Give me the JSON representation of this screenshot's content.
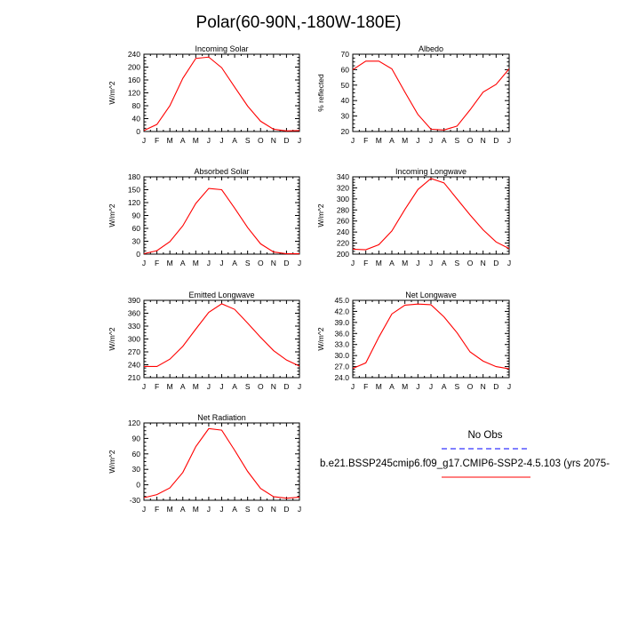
{
  "figure": {
    "title": "Polar(60-90N,-180W-180E)",
    "colors": {
      "model": "#ff0000",
      "obs": "#0000ff",
      "axis": "#000000"
    }
  },
  "legend": {
    "obs_label": "No Obs",
    "model_label": "b.e21.BSSP245cmip6.f09_g17.CMIP6-SSP2-4.5.103 (yrs 2075-"
  },
  "chart_data": [
    {
      "type": "line",
      "title": "Incoming Solar",
      "ylabel": "W/m^2",
      "categories": [
        "J",
        "F",
        "M",
        "A",
        "M",
        "J",
        "J",
        "A",
        "S",
        "O",
        "N",
        "D",
        "J"
      ],
      "ylim": [
        0,
        240
      ],
      "yticks": [
        "0",
        "40",
        "80",
        "120",
        "160",
        "200",
        "240"
      ],
      "series": [
        {
          "name": "model",
          "values": [
            3,
            22,
            80,
            165,
            227,
            231,
            198,
            138,
            79,
            32,
            7,
            2,
            3
          ]
        }
      ]
    },
    {
      "type": "line",
      "title": "Albedo",
      "ylabel": "% reflected",
      "categories": [
        "J",
        "F",
        "M",
        "A",
        "M",
        "J",
        "J",
        "A",
        "S",
        "O",
        "N",
        "D",
        "J"
      ],
      "ylim": [
        20,
        70
      ],
      "yticks": [
        "20",
        "30",
        "40",
        "50",
        "60",
        "70"
      ],
      "series": [
        {
          "name": "model",
          "values": [
            60,
            65.5,
            65.5,
            60.5,
            45.5,
            31,
            21.5,
            21,
            23.5,
            34,
            45.5,
            50.5,
            60.5
          ]
        }
      ]
    },
    {
      "type": "line",
      "title": "Absorbed Solar",
      "ylabel": "W/m^2",
      "categories": [
        "J",
        "F",
        "M",
        "A",
        "M",
        "J",
        "J",
        "A",
        "S",
        "O",
        "N",
        "D",
        "J"
      ],
      "ylim": [
        0,
        180
      ],
      "yticks": [
        "0",
        "30",
        "60",
        "90",
        "120",
        "150",
        "180"
      ],
      "series": [
        {
          "name": "model",
          "values": [
            1,
            8,
            29,
            66,
            118,
            153,
            150,
            107,
            62,
            24,
            5,
            1,
            1
          ]
        }
      ]
    },
    {
      "type": "line",
      "title": "Incoming Longwave",
      "ylabel": "W/m^2",
      "categories": [
        "J",
        "F",
        "M",
        "A",
        "M",
        "J",
        "J",
        "A",
        "S",
        "O",
        "N",
        "D",
        "J"
      ],
      "ylim": [
        200,
        340
      ],
      "yticks": [
        "200",
        "220",
        "240",
        "260",
        "280",
        "300",
        "320",
        "340"
      ],
      "series": [
        {
          "name": "model",
          "values": [
            209,
            208,
            217,
            242,
            281,
            317,
            337,
            329,
            300,
            271,
            244,
            222,
            210
          ]
        }
      ]
    },
    {
      "type": "line",
      "title": "Emitted Longwave",
      "ylabel": "W/m^2",
      "categories": [
        "J",
        "F",
        "M",
        "A",
        "M",
        "J",
        "J",
        "A",
        "S",
        "O",
        "N",
        "D",
        "J"
      ],
      "ylim": [
        210,
        390
      ],
      "yticks": [
        "210",
        "240",
        "270",
        "300",
        "330",
        "360",
        "390"
      ],
      "series": [
        {
          "name": "model",
          "values": [
            236,
            236,
            253,
            283,
            323,
            362,
            382,
            369,
            337,
            304,
            273,
            251,
            237
          ]
        }
      ]
    },
    {
      "type": "line",
      "title": "Net Longwave",
      "ylabel": "W/m^2",
      "categories": [
        "J",
        "F",
        "M",
        "A",
        "M",
        "J",
        "J",
        "A",
        "S",
        "O",
        "N",
        "D",
        "J"
      ],
      "ylim": [
        24,
        45
      ],
      "yticks": [
        "24.0",
        "27.0",
        "30.0",
        "33.0",
        "36.0",
        "39.0",
        "42.0",
        "45.0"
      ],
      "series": [
        {
          "name": "model",
          "values": [
            26.5,
            28,
            35,
            41.3,
            43.7,
            44,
            43.8,
            40.5,
            36.2,
            31,
            28.5,
            27,
            26.4
          ]
        }
      ]
    },
    {
      "type": "line",
      "title": "Net Radiation",
      "ylabel": "W/m^2",
      "categories": [
        "J",
        "F",
        "M",
        "A",
        "M",
        "J",
        "J",
        "A",
        "S",
        "O",
        "N",
        "D",
        "J"
      ],
      "ylim": [
        -30,
        120
      ],
      "yticks": [
        "-30",
        "0",
        "30",
        "60",
        "90",
        "120"
      ],
      "series": [
        {
          "name": "model",
          "values": [
            -25,
            -19,
            -6,
            24,
            74,
            109,
            106,
            67,
            26,
            -7,
            -23,
            -26,
            -24
          ]
        }
      ]
    }
  ]
}
